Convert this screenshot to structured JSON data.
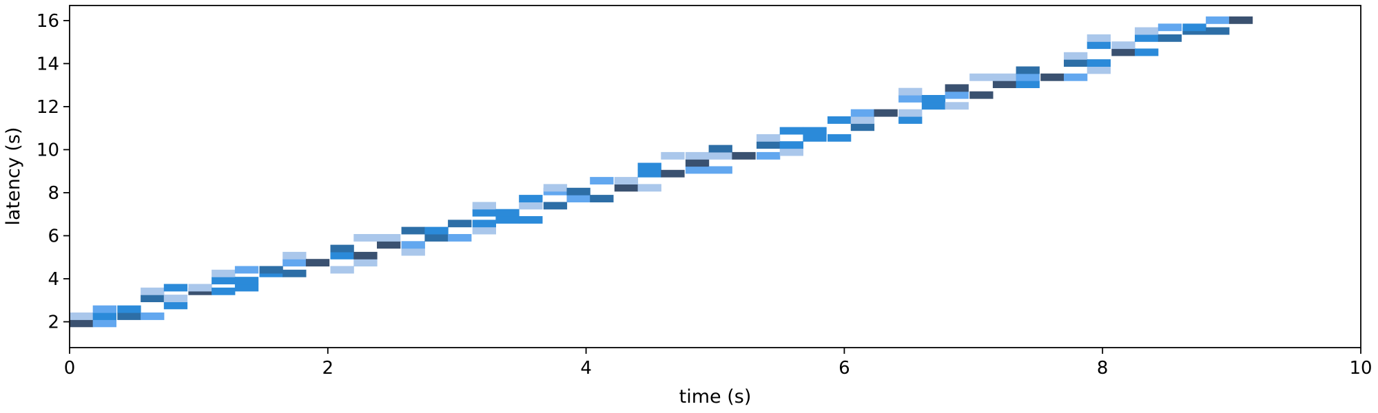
{
  "chart_data": {
    "type": "heatmap",
    "title": "",
    "xlabel": "time (s)",
    "ylabel": "latency (s)",
    "xlim": [
      0,
      10
    ],
    "ylim": [
      0.8,
      16.7
    ],
    "x_ticks": [
      "0",
      "2",
      "4",
      "6",
      "8",
      "10"
    ],
    "x_tick_values": [
      0,
      2,
      4,
      6,
      8,
      10
    ],
    "y_ticks": [
      "2",
      "4",
      "6",
      "8",
      "10",
      "12",
      "14",
      "16"
    ],
    "y_tick_values": [
      2,
      4,
      6,
      8,
      10,
      12,
      14,
      16
    ],
    "grid": false,
    "bin_width": 0.18,
    "bin_height": 0.33,
    "palette": [
      "#aac7eb",
      "#62a7ef",
      "#2b8ad9",
      "#2d6ea6",
      "#3a5170"
    ],
    "cells": [
      [
        0.0,
        1.77,
        4
      ],
      [
        0.0,
        2.1,
        0
      ],
      [
        0.18,
        1.77,
        1
      ],
      [
        0.18,
        2.1,
        2
      ],
      [
        0.18,
        2.43,
        1
      ],
      [
        0.37,
        2.1,
        3
      ],
      [
        0.37,
        2.43,
        2
      ],
      [
        0.55,
        2.1,
        1
      ],
      [
        0.55,
        2.93,
        3
      ],
      [
        0.55,
        3.26,
        0
      ],
      [
        0.73,
        2.6,
        2
      ],
      [
        0.73,
        2.93,
        0
      ],
      [
        0.73,
        3.43,
        2
      ],
      [
        0.92,
        3.26,
        4
      ],
      [
        0.92,
        3.43,
        0
      ],
      [
        1.1,
        3.26,
        2
      ],
      [
        1.1,
        3.76,
        2
      ],
      [
        1.1,
        4.09,
        0
      ],
      [
        1.28,
        3.43,
        2
      ],
      [
        1.28,
        3.76,
        2
      ],
      [
        1.28,
        4.26,
        1
      ],
      [
        1.47,
        4.09,
        2
      ],
      [
        1.47,
        4.26,
        3
      ],
      [
        1.65,
        4.09,
        3
      ],
      [
        1.65,
        4.59,
        1
      ],
      [
        1.65,
        4.92,
        0
      ],
      [
        1.83,
        4.59,
        4
      ],
      [
        2.02,
        4.26,
        0
      ],
      [
        2.02,
        4.92,
        2
      ],
      [
        2.02,
        5.25,
        3
      ],
      [
        2.2,
        4.59,
        0
      ],
      [
        2.2,
        4.92,
        4
      ],
      [
        2.2,
        5.75,
        0
      ],
      [
        2.38,
        5.42,
        4
      ],
      [
        2.38,
        5.75,
        0
      ],
      [
        2.57,
        5.09,
        0
      ],
      [
        2.57,
        5.42,
        1
      ],
      [
        2.57,
        6.08,
        3
      ],
      [
        2.75,
        5.75,
        3
      ],
      [
        2.75,
        6.08,
        2
      ],
      [
        2.93,
        5.75,
        1
      ],
      [
        2.93,
        6.41,
        3
      ],
      [
        3.12,
        6.08,
        0
      ],
      [
        3.12,
        6.41,
        2
      ],
      [
        3.12,
        6.91,
        2
      ],
      [
        3.12,
        7.24,
        0
      ],
      [
        3.3,
        6.58,
        2
      ],
      [
        3.3,
        6.91,
        2
      ],
      [
        3.48,
        6.58,
        2
      ],
      [
        3.48,
        7.24,
        0
      ],
      [
        3.48,
        7.57,
        2
      ],
      [
        3.67,
        7.24,
        3
      ],
      [
        3.67,
        7.9,
        1
      ],
      [
        3.67,
        8.07,
        0
      ],
      [
        3.85,
        7.57,
        1
      ],
      [
        3.85,
        7.9,
        3
      ],
      [
        4.03,
        7.57,
        3
      ],
      [
        4.03,
        8.4,
        1
      ],
      [
        4.22,
        8.07,
        4
      ],
      [
        4.22,
        8.4,
        0
      ],
      [
        4.4,
        8.07,
        0
      ],
      [
        4.4,
        8.73,
        2
      ],
      [
        4.4,
        9.06,
        2
      ],
      [
        4.58,
        8.73,
        4
      ],
      [
        4.58,
        9.56,
        0
      ],
      [
        4.77,
        8.9,
        1
      ],
      [
        4.77,
        9.23,
        4
      ],
      [
        4.77,
        9.56,
        0
      ],
      [
        4.95,
        8.9,
        1
      ],
      [
        4.95,
        9.56,
        0
      ],
      [
        4.95,
        9.89,
        3
      ],
      [
        5.13,
        9.56,
        4
      ],
      [
        5.32,
        9.56,
        1
      ],
      [
        5.32,
        10.06,
        3
      ],
      [
        5.32,
        10.39,
        0
      ],
      [
        5.5,
        9.73,
        0
      ],
      [
        5.5,
        10.06,
        2
      ],
      [
        5.5,
        10.72,
        2
      ],
      [
        5.68,
        10.39,
        2
      ],
      [
        5.68,
        10.72,
        2
      ],
      [
        5.87,
        10.39,
        2
      ],
      [
        5.87,
        11.22,
        2
      ],
      [
        6.05,
        10.89,
        3
      ],
      [
        6.05,
        11.22,
        0
      ],
      [
        6.05,
        11.55,
        1
      ],
      [
        6.23,
        11.55,
        4
      ],
      [
        6.42,
        11.22,
        2
      ],
      [
        6.42,
        11.55,
        0
      ],
      [
        6.42,
        12.21,
        1
      ],
      [
        6.42,
        12.54,
        0
      ],
      [
        6.6,
        11.88,
        2
      ],
      [
        6.6,
        12.21,
        2
      ],
      [
        6.78,
        11.88,
        0
      ],
      [
        6.78,
        12.38,
        1
      ],
      [
        6.78,
        12.71,
        4
      ],
      [
        6.97,
        12.38,
        4
      ],
      [
        6.97,
        13.21,
        0
      ],
      [
        7.15,
        12.88,
        4
      ],
      [
        7.15,
        13.21,
        0
      ],
      [
        7.33,
        12.88,
        2
      ],
      [
        7.33,
        13.21,
        1
      ],
      [
        7.33,
        13.54,
        3
      ],
      [
        7.52,
        13.21,
        4
      ],
      [
        7.7,
        13.21,
        1
      ],
      [
        7.7,
        13.87,
        3
      ],
      [
        7.7,
        14.2,
        0
      ],
      [
        7.88,
        13.54,
        0
      ],
      [
        7.88,
        13.87,
        2
      ],
      [
        7.88,
        14.7,
        2
      ],
      [
        7.88,
        15.03,
        0
      ],
      [
        8.07,
        14.37,
        4
      ],
      [
        8.07,
        14.7,
        0
      ],
      [
        8.25,
        14.37,
        2
      ],
      [
        8.25,
        15.03,
        2
      ],
      [
        8.25,
        15.36,
        0
      ],
      [
        8.43,
        15.03,
        3
      ],
      [
        8.43,
        15.53,
        1
      ],
      [
        8.62,
        15.36,
        3
      ],
      [
        8.62,
        15.53,
        2
      ],
      [
        8.8,
        15.36,
        3
      ],
      [
        8.8,
        15.86,
        1
      ],
      [
        8.98,
        15.86,
        4
      ]
    ]
  }
}
